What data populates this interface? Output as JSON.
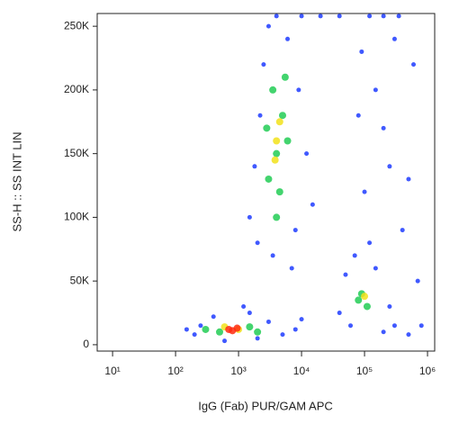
{
  "chart_data": {
    "type": "scatter",
    "x_label": "IgG (Fab) PUR/GAM APC",
    "y_label": "SS-H :: SS INT LIN",
    "xscale": "log",
    "xlim": [
      5.7,
      1300000
    ],
    "ylim": [
      -5000,
      260000
    ],
    "xticks": [
      {
        "value": 10,
        "label": "10¹"
      },
      {
        "value": 100,
        "label": "10²"
      },
      {
        "value": 1000,
        "label": "10³"
      },
      {
        "value": 10000,
        "label": "10⁴"
      },
      {
        "value": 100000,
        "label": "10⁵"
      },
      {
        "value": 1000000,
        "label": "10⁶"
      }
    ],
    "yticks": [
      0,
      {
        "value": 50000,
        "label": "50K"
      },
      {
        "value": 100000,
        "label": "100K"
      },
      {
        "value": 150000,
        "label": "150K"
      },
      {
        "value": 200000,
        "label": "200K"
      },
      {
        "value": 250000,
        "label": "250K"
      }
    ],
    "series": [
      {
        "color": "#1f3cff",
        "x": [
          200,
          250,
          400,
          1500,
          3000,
          5000,
          8000,
          150,
          2000,
          600,
          10000,
          1200,
          1500,
          2000,
          2500,
          3000,
          6000,
          9000,
          12000,
          15000,
          8000,
          2200,
          1800,
          3500,
          7000,
          4000,
          10000,
          40000,
          50000,
          70000,
          150000,
          250000,
          300000,
          200000,
          60000,
          120000,
          100000,
          150000,
          200000,
          300000,
          500000,
          80000,
          400000,
          600000,
          120000,
          200000,
          350000,
          700000,
          250000,
          90000,
          20000,
          40000,
          800000,
          500000
        ],
        "y": [
          8000,
          15000,
          22000,
          25000,
          18000,
          8000,
          12000,
          12000,
          5000,
          3000,
          20000,
          30000,
          100000,
          80000,
          220000,
          250000,
          240000,
          200000,
          150000,
          110000,
          90000,
          180000,
          140000,
          70000,
          60000,
          258000,
          258000,
          25000,
          55000,
          70000,
          60000,
          30000,
          15000,
          10000,
          15000,
          80000,
          120000,
          200000,
          170000,
          240000,
          130000,
          180000,
          90000,
          220000,
          258000,
          258000,
          258000,
          50000,
          140000,
          230000,
          258000,
          258000,
          15000,
          8000
        ]
      },
      {
        "color": "#22cc55",
        "x": [
          3000,
          4000,
          5000,
          3500,
          6000,
          4500,
          2800,
          5500,
          4000,
          90000,
          110000,
          80000,
          500,
          1500,
          300,
          2000
        ],
        "y": [
          130000,
          150000,
          180000,
          200000,
          160000,
          120000,
          170000,
          210000,
          100000,
          40000,
          30000,
          35000,
          10000,
          14000,
          12000,
          10000
        ]
      },
      {
        "color": "#f2e21a",
        "x": [
          4000,
          4500,
          3800,
          1000,
          600,
          100000
        ],
        "y": [
          160000,
          175000,
          145000,
          12000,
          14000,
          38000
        ]
      },
      {
        "color": "#ff2a10",
        "x": [
          800,
          950,
          700
        ],
        "y": [
          11000,
          13000,
          12000
        ]
      }
    ]
  }
}
